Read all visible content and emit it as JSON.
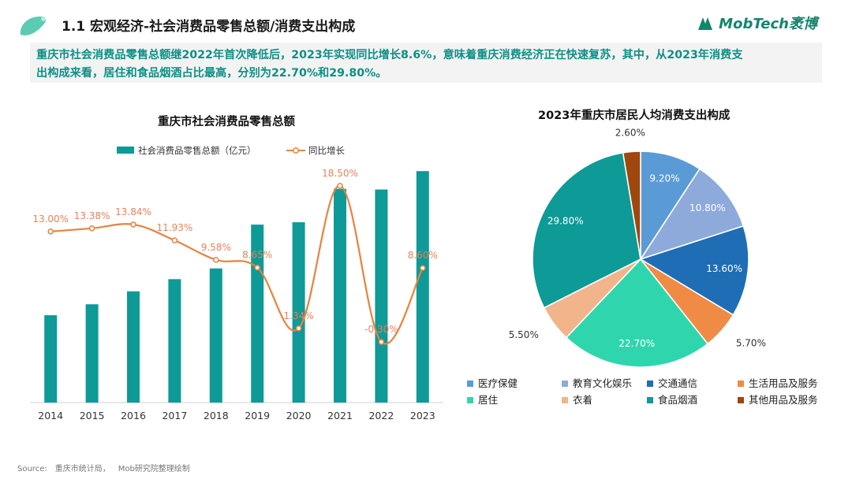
{
  "header": {
    "title": "1.1 宏观经济-社会消费品零售总额/消费支出构成",
    "logo_text": "MobTech袤博"
  },
  "summary": {
    "line1": "重庆市社会消费品零售总额继2022年首次降低后，2023年实现同比增长8.6%，意味着重庆消费经济正在快速复苏，其中，从2023年消费支",
    "line2": "出构成来看，居住和食品烟酒占比最高，分别为22.70%和29.80%。"
  },
  "colors": {
    "accent_green": "#14866d",
    "summary_text": "#0f8f86",
    "bar": "#0e9a97",
    "line": "#e8823f",
    "line_label": "#e8825a"
  },
  "chart_data": [
    {
      "type": "bar",
      "title": "重庆市社会消费品零售总额",
      "categories": [
        "2014",
        "2015",
        "2016",
        "2017",
        "2018",
        "2019",
        "2020",
        "2021",
        "2022",
        "2023"
      ],
      "series": [
        {
          "name": "社会消费品零售总额（亿元）",
          "type": "bar",
          "values": [
            5710,
            6424,
            7271,
            8067,
            8770,
            11632,
            11787,
            13968,
            13926,
            15130
          ]
        },
        {
          "name": "同比增长",
          "type": "line",
          "values": [
            13.0,
            13.38,
            13.84,
            11.93,
            9.58,
            8.65,
            1.34,
            18.5,
            -0.3,
            8.6
          ],
          "labels": [
            "13.00%",
            "13.38%",
            "13.84%",
            "11.93%",
            "9.58%",
            "8.65%",
            "1.34%",
            "18.50%",
            "-0.30%",
            "8.60%"
          ]
        }
      ],
      "legend": "top",
      "ylim_bar": [
        0,
        15500
      ],
      "ylim_line": [
        -2,
        20
      ]
    },
    {
      "type": "pie",
      "title": "2023年重庆市居民人均消费支出构成",
      "slices": [
        {
          "label": "医疗保健",
          "value": 9.2,
          "text": "9.20%",
          "color": "#5b9bd5"
        },
        {
          "label": "教育文化娱乐",
          "value": 10.8,
          "text": "10.80%",
          "color": "#8eaadb"
        },
        {
          "label": "交通通信",
          "value": 13.6,
          "text": "13.60%",
          "color": "#1f6db5"
        },
        {
          "label": "生活用品及服务",
          "value": 5.7,
          "text": "5.70%",
          "color": "#ef8b45"
        },
        {
          "label": "居住",
          "value": 22.7,
          "text": "22.70%",
          "color": "#2fd6ad"
        },
        {
          "label": "衣着",
          "value": 5.5,
          "text": "5.50%",
          "color": "#f2b48a"
        },
        {
          "label": "食品烟酒",
          "value": 29.8,
          "text": "29.80%",
          "color": "#0e9a97"
        },
        {
          "label": "其他用品及服务",
          "value": 2.6,
          "text": "2.60%",
          "color": "#9e480e"
        }
      ],
      "legend": "bottom"
    }
  ],
  "source": {
    "label": "Source:",
    "text1": "重庆市统计局，",
    "text2": "Mob研究院整理绘制"
  }
}
